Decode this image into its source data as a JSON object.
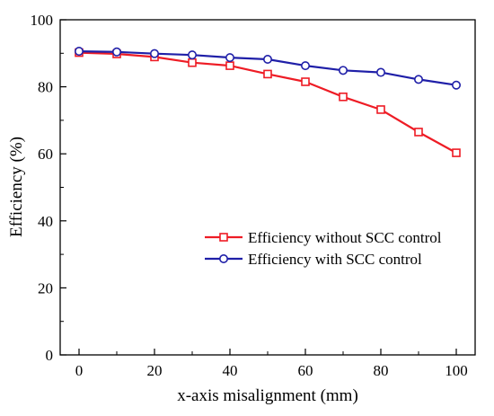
{
  "chart_data": {
    "type": "line",
    "title": "",
    "xlabel": "x-axis misalignment (mm)",
    "ylabel": "Efficiency (%)",
    "xlim": [
      -5,
      105
    ],
    "ylim": [
      0,
      100
    ],
    "xticks": [
      0,
      20,
      40,
      60,
      80,
      100
    ],
    "yticks": [
      0,
      20,
      40,
      60,
      80,
      100
    ],
    "xminor": [
      10,
      30,
      50,
      70,
      90
    ],
    "yminor": [
      10,
      30,
      50,
      70,
      90
    ],
    "grid": false,
    "legend_position": "center-right",
    "x": [
      0,
      10,
      20,
      30,
      40,
      50,
      60,
      70,
      80,
      90,
      100
    ],
    "series": [
      {
        "name": "Efficiency without SCC control",
        "color": "#ee1c25",
        "marker": "square",
        "values": [
          90.2,
          89.8,
          88.9,
          87.2,
          86.3,
          83.8,
          81.5,
          77.0,
          73.2,
          66.5,
          60.3
        ]
      },
      {
        "name": "Efficiency with SCC control",
        "color": "#1f1fa8",
        "marker": "circle",
        "values": [
          90.6,
          90.4,
          89.9,
          89.5,
          88.7,
          88.2,
          86.3,
          84.9,
          84.3,
          82.2,
          80.5
        ]
      }
    ]
  }
}
